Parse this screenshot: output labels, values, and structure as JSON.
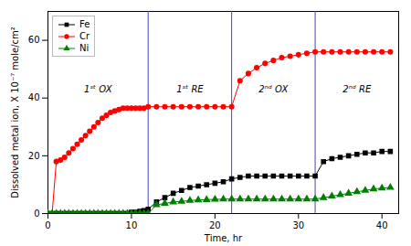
{
  "chart_data": {
    "type": "line",
    "xlabel": "Time, hr",
    "ylabel": "Dissolved metal ion, X 10⁻⁷ mole/cm²",
    "x": [
      0,
      0.5,
      1,
      1.5,
      2,
      2.5,
      3,
      3.5,
      4,
      4.5,
      5,
      5.5,
      6,
      6.5,
      7,
      7.5,
      8,
      8.5,
      9,
      9.5,
      10,
      10.5,
      11,
      11.5,
      12,
      13,
      14,
      15,
      16,
      17,
      18,
      19,
      20,
      21,
      22,
      23,
      24,
      25,
      26,
      27,
      28,
      29,
      30,
      31,
      32,
      33,
      34,
      35,
      36,
      37,
      38,
      39,
      40,
      41
    ],
    "series": [
      {
        "name": "Fe",
        "color": "black",
        "marker": "square",
        "values": [
          0,
          0,
          0,
          0,
          0,
          0,
          0,
          0,
          0,
          0,
          0,
          0,
          0,
          0,
          0,
          0,
          0,
          0,
          0,
          0,
          0.5,
          0.5,
          0.8,
          1.0,
          1.5,
          4.0,
          5.5,
          7.0,
          8.0,
          9.0,
          9.5,
          10.0,
          10.5,
          11.0,
          12.0,
          12.5,
          13.0,
          13.0,
          13.0,
          13.0,
          13.0,
          13.0,
          13.0,
          13.0,
          13.0,
          18.0,
          19.0,
          19.5,
          20.0,
          20.5,
          21.0,
          21.0,
          21.5,
          21.5
        ]
      },
      {
        "name": "Cr",
        "color": "red",
        "marker": "circle",
        "values": [
          0,
          0,
          18,
          18.5,
          19.5,
          21,
          22.5,
          24,
          25.5,
          27,
          28.5,
          30,
          31.5,
          33,
          34,
          35,
          35.5,
          36,
          36.5,
          36.5,
          36.5,
          36.5,
          36.5,
          36.5,
          37,
          37,
          37,
          37,
          37,
          37,
          37,
          37,
          37,
          37,
          37,
          46,
          48.5,
          50.5,
          52,
          53,
          54,
          54.5,
          55,
          55.5,
          56,
          56,
          56,
          56,
          56,
          56,
          56,
          56,
          56,
          56
        ]
      },
      {
        "name": "Ni",
        "color": "green",
        "marker": "triangle",
        "values": [
          0,
          0,
          0,
          0,
          0,
          0,
          0,
          0,
          0,
          0,
          0,
          0,
          0,
          0,
          0,
          0,
          0,
          0,
          0,
          0,
          0,
          0,
          0,
          0,
          0,
          3.0,
          3.5,
          4.0,
          4.2,
          4.5,
          4.7,
          4.8,
          4.9,
          5.0,
          5.0,
          5.0,
          5.0,
          5.0,
          5.0,
          5.0,
          5.0,
          5.0,
          5.0,
          5.0,
          5.0,
          5.5,
          6.0,
          6.5,
          7.0,
          7.5,
          8.0,
          8.5,
          8.8,
          9.0
        ]
      }
    ],
    "xlim": [
      0,
      42
    ],
    "ylim": [
      0,
      70
    ],
    "xticks": [
      0,
      10,
      20,
      30,
      40
    ],
    "yticks": [
      0,
      20,
      40,
      60
    ],
    "grid": false,
    "legend": "upper left",
    "vlines": {
      "values": [
        12,
        22,
        32
      ],
      "color": "#4444bb"
    },
    "annotations": [
      {
        "text": "1ˢᵗ OX",
        "x": 6,
        "y": 43
      },
      {
        "text": "1ˢᵗ RE",
        "x": 17,
        "y": 43
      },
      {
        "text": "2ⁿᵈ OX",
        "x": 27,
        "y": 43
      },
      {
        "text": "2ⁿᵈ RE",
        "x": 37,
        "y": 43
      }
    ]
  }
}
